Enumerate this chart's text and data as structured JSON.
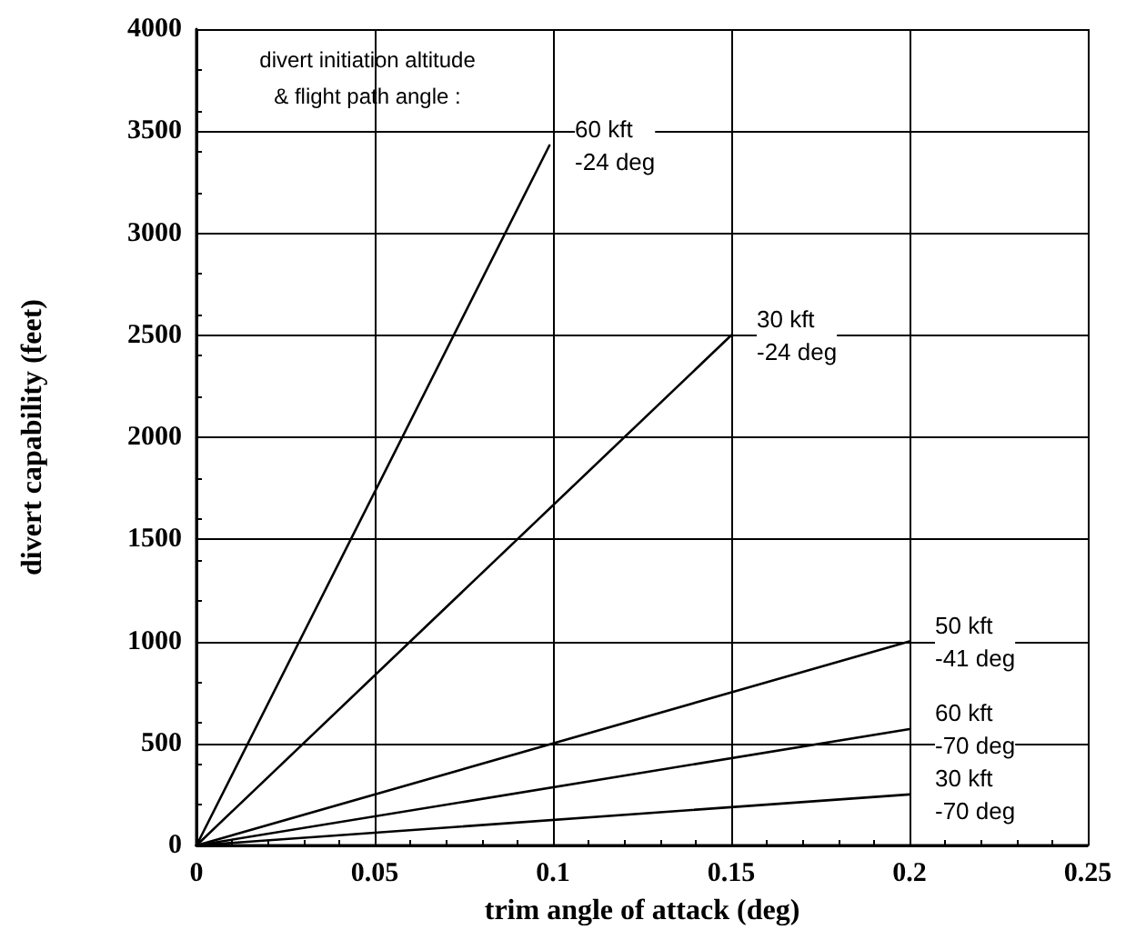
{
  "chart_data": {
    "type": "line",
    "xlabel": "trim angle of attack (deg)",
    "ylabel": "divert capability (feet)",
    "xlim": [
      0,
      0.25
    ],
    "xticks": [
      0,
      0.05,
      0.1,
      0.15,
      0.2,
      0.25
    ],
    "ylim": [
      0,
      4000
    ],
    "yticks": [
      0,
      500,
      1000,
      1500,
      2000,
      2500,
      3000,
      3500,
      4000
    ],
    "grid": true,
    "legend": false,
    "marker": "none",
    "line_style": "solid",
    "annotations": [
      "divert initiation altitude\n& flight path angle :"
    ],
    "series": [
      {
        "name": "60 kft\n-24 deg",
        "color": "#000000",
        "x": [
          0,
          0.099
        ],
        "values": [
          0,
          3430
        ]
      },
      {
        "name": "30 kft\n-24 deg",
        "color": "#000000",
        "x": [
          0,
          0.15
        ],
        "values": [
          0,
          2500
        ]
      },
      {
        "name": "50 kft\n-41 deg",
        "color": "#000000",
        "x": [
          0,
          0.2
        ],
        "values": [
          0,
          1000
        ]
      },
      {
        "name": "60 kft\n-70 deg",
        "color": "#000000",
        "x": [
          0,
          0.2
        ],
        "values": [
          0,
          570
        ]
      },
      {
        "name": "30 kft\n-70 deg",
        "color": "#000000",
        "x": [
          0,
          0.2
        ],
        "values": [
          0,
          250
        ]
      }
    ]
  }
}
